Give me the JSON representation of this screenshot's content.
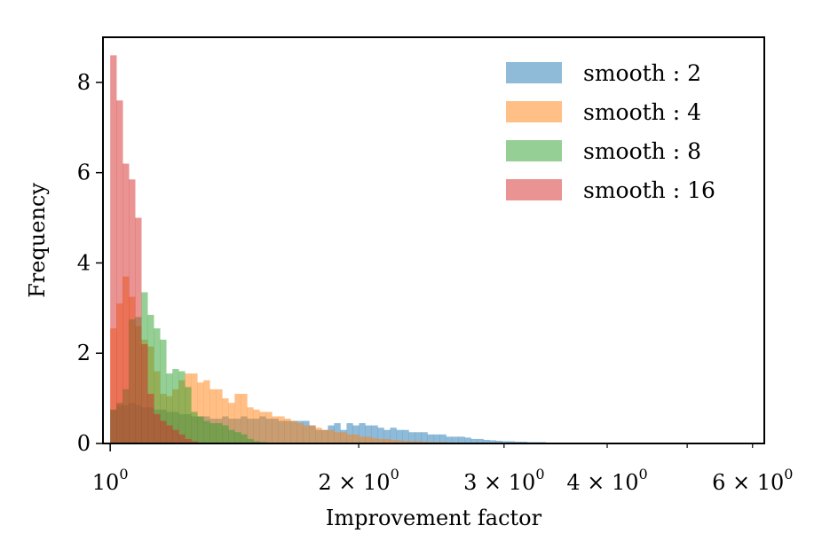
{
  "chart_data": {
    "type": "histogram",
    "xlabel": "Improvement factor",
    "ylabel": "Frequency",
    "xscale": "log",
    "xlim": [
      0.98,
      6.2
    ],
    "ylim": [
      0,
      9.0
    ],
    "grid": false,
    "legend_position": "top-right",
    "yticks": [
      0,
      2,
      4,
      6,
      8
    ],
    "xticks_major": [
      {
        "value": 1,
        "mantissa": "",
        "exp": "0"
      }
    ],
    "xticks_minor": [
      {
        "value": 2,
        "mantissa": "2",
        "exp": "0"
      },
      {
        "value": 3,
        "mantissa": "3",
        "exp": "0"
      },
      {
        "value": 4,
        "mantissa": "4",
        "exp": "0"
      },
      {
        "value": 5,
        "mantissa": "",
        "exp": ""
      },
      {
        "value": 6,
        "mantissa": "6",
        "exp": "0"
      }
    ],
    "series": [
      {
        "name": "smooth : 2",
        "color": "#1f77b4",
        "bin_start": 1.0,
        "bin_ratio": 1.0175,
        "values": [
          0.75,
          0.85,
          0.85,
          0.9,
          0.85,
          0.8,
          0.8,
          0.75,
          0.75,
          0.7,
          0.7,
          0.65,
          0.65,
          0.6,
          0.6,
          0.6,
          0.55,
          0.55,
          0.6,
          0.55,
          0.55,
          0.6,
          0.55,
          0.55,
          0.6,
          0.55,
          0.55,
          0.5,
          0.5,
          0.5,
          0.5,
          0.5,
          0.4,
          0.3,
          0.3,
          0.4,
          0.45,
          0.3,
          0.45,
          0.4,
          0.45,
          0.4,
          0.4,
          0.35,
          0.3,
          0.35,
          0.3,
          0.3,
          0.25,
          0.25,
          0.25,
          0.2,
          0.2,
          0.2,
          0.15,
          0.15,
          0.15,
          0.13,
          0.1,
          0.1,
          0.08,
          0.07,
          0.06,
          0.05,
          0.05,
          0.04,
          0.04,
          0.03,
          0.03,
          0.03,
          0.02,
          0.02,
          0.02,
          0.02,
          0.01,
          0.01,
          0.01,
          0.01,
          0.01,
          0.01,
          0.01,
          0.01,
          0.01,
          0.01,
          0.01,
          0.01,
          0.01,
          0.01,
          0.01,
          0.01,
          0.01,
          0.01,
          0.01,
          0.01,
          0.01,
          0.01,
          0.01,
          0.01,
          0.01,
          0.01,
          0.01,
          0.01,
          0.01,
          0.01
        ]
      },
      {
        "name": "smooth : 4",
        "color": "#ff7f0e",
        "bin_start": 1.0,
        "bin_ratio": 1.0175,
        "values": [
          2.55,
          3.1,
          3.7,
          3.25,
          2.6,
          2.3,
          2.15,
          1.6,
          1.1,
          1.05,
          1.2,
          1.4,
          1.55,
          1.55,
          1.35,
          1.4,
          1.2,
          1.2,
          1.0,
          0.9,
          1.1,
          1.1,
          0.8,
          0.75,
          0.7,
          0.7,
          0.6,
          0.6,
          0.55,
          0.5,
          0.45,
          0.4,
          0.4,
          0.35,
          0.3,
          0.3,
          0.25,
          0.25,
          0.2,
          0.2,
          0.15,
          0.15,
          0.12,
          0.1,
          0.1,
          0.08,
          0.07,
          0.06,
          0.05,
          0.05,
          0.04,
          0.03,
          0.03,
          0.03,
          0.02,
          0.02,
          0.02
        ]
      },
      {
        "name": "smooth : 8",
        "color": "#2ca02c",
        "bin_start": 1.0,
        "bin_ratio": 1.0175,
        "values": [
          0.75,
          0.9,
          1.2,
          2.75,
          2.8,
          3.35,
          2.85,
          2.55,
          2.3,
          1.55,
          1.65,
          1.6,
          1.25,
          0.7,
          0.6,
          0.5,
          0.45,
          0.45,
          0.4,
          0.3,
          0.25,
          0.2,
          0.1,
          0.05,
          0.03,
          0.02,
          0.01,
          0.01
        ]
      },
      {
        "name": "smooth : 16",
        "color": "#d62728",
        "bin_start": 1.0,
        "bin_ratio": 1.0175,
        "values": [
          8.6,
          7.6,
          6.2,
          5.85,
          5.0,
          2.2,
          1.1,
          0.65,
          0.5,
          0.4,
          0.3,
          0.2,
          0.1,
          0.05,
          0.02,
          0.01
        ]
      }
    ]
  }
}
